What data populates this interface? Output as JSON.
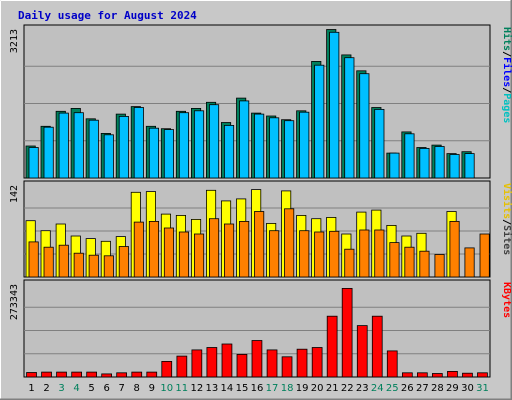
{
  "chart_data": [
    {
      "type": "bar",
      "panel": "pages-files-hits",
      "title": "Daily usage for August 2024",
      "ymax_label": "3213",
      "ylabel_parts": [
        "Pages",
        "Files",
        "Hits"
      ],
      "categories": [
        "1",
        "2",
        "3",
        "4",
        "5",
        "6",
        "7",
        "8",
        "9",
        "10",
        "11",
        "12",
        "13",
        "14",
        "15",
        "16",
        "17",
        "18",
        "19",
        "20",
        "21",
        "22",
        "23",
        "24",
        "25",
        "26",
        "27",
        "28",
        "29",
        "30",
        "31"
      ],
      "weekend_days": [
        "3",
        "4",
        "10",
        "11",
        "17",
        "18",
        "24",
        "25",
        "31"
      ],
      "ylim": [
        0,
        3213
      ],
      "series": [
        {
          "name": "Hits",
          "color": "#00805c",
          "values": [
            680,
            1100,
            1420,
            1480,
            1260,
            950,
            1360,
            1520,
            1100,
            1050,
            1420,
            1480,
            1610,
            1180,
            1700,
            1380,
            1320,
            1240,
            1430,
            2480,
            3160,
            2620,
            2280,
            1500,
            530,
            980,
            650,
            700,
            520,
            560,
            0
          ]
        },
        {
          "name": "Files",
          "color": "#00c0ff",
          "values": [
            650,
            1080,
            1380,
            1390,
            1230,
            920,
            1310,
            1500,
            1060,
            1030,
            1390,
            1430,
            1560,
            1120,
            1640,
            1360,
            1280,
            1220,
            1400,
            2400,
            3100,
            2560,
            2220,
            1460,
            530,
            940,
            630,
            670,
            500,
            520,
            0
          ]
        }
      ]
    },
    {
      "type": "bar",
      "panel": "sites-visits",
      "ymax_label": "142",
      "ylabel_parts": [
        "Sites",
        "Visits"
      ],
      "categories": [
        "1",
        "2",
        "3",
        "4",
        "5",
        "6",
        "7",
        "8",
        "9",
        "10",
        "11",
        "12",
        "13",
        "14",
        "15",
        "16",
        "17",
        "18",
        "19",
        "20",
        "21",
        "22",
        "23",
        "24",
        "25",
        "26",
        "27",
        "28",
        "29",
        "30",
        "31"
      ],
      "ylim": [
        0,
        142
      ],
      "series": [
        {
          "name": "Visits",
          "color": "#ffff00",
          "values": [
            85,
            70,
            80,
            62,
            58,
            54,
            61,
            128,
            129,
            95,
            93,
            87,
            131,
            115,
            118,
            132,
            81,
            130,
            93,
            88,
            90,
            65,
            98,
            101,
            78,
            62,
            66,
            0,
            99,
            0,
            0
          ]
        },
        {
          "name": "Sites",
          "color": "#ff8000",
          "values": [
            53,
            45,
            48,
            36,
            33,
            32,
            46,
            83,
            84,
            74,
            68,
            65,
            88,
            80,
            84,
            99,
            70,
            103,
            70,
            68,
            69,
            42,
            71,
            71,
            52,
            45,
            39,
            34,
            84,
            44,
            65
          ]
        }
      ]
    },
    {
      "type": "bar",
      "panel": "kbytes",
      "ymax_label": "273343",
      "ylabel_parts": [
        "KBytes"
      ],
      "categories": [
        "1",
        "2",
        "3",
        "4",
        "5",
        "6",
        "7",
        "8",
        "9",
        "10",
        "11",
        "12",
        "13",
        "14",
        "15",
        "16",
        "17",
        "18",
        "19",
        "20",
        "21",
        "22",
        "23",
        "24",
        "25",
        "26",
        "27",
        "28",
        "29",
        "30",
        "31"
      ],
      "ylim": [
        0,
        273343
      ],
      "series": [
        {
          "name": "KBytes",
          "color": "#ff0000",
          "values": [
            13000,
            14000,
            14000,
            14000,
            14000,
            9000,
            12000,
            14000,
            14000,
            45000,
            60000,
            78000,
            85000,
            95000,
            65000,
            105000,
            78000,
            58000,
            80000,
            85000,
            175000,
            255000,
            148000,
            175000,
            75000,
            12000,
            12000,
            10000,
            16000,
            11000,
            12000
          ]
        }
      ]
    }
  ]
}
